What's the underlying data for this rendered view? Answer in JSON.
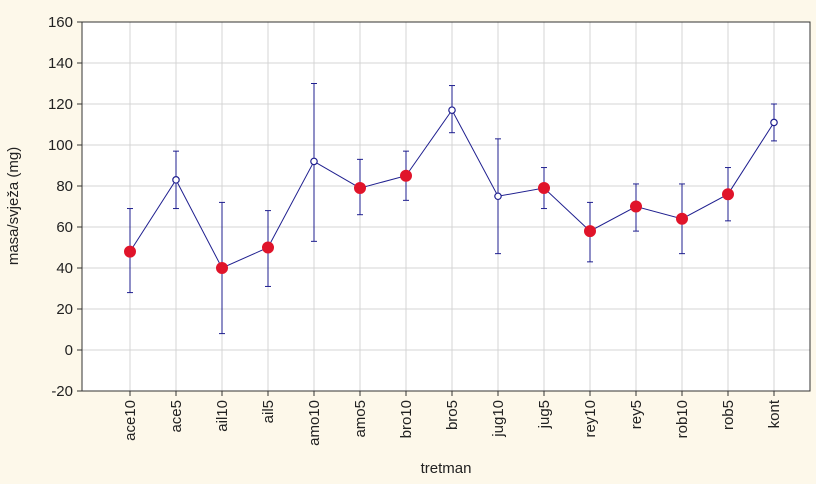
{
  "chart_data": {
    "type": "line",
    "xlabel": "tretman",
    "ylabel": "masa/svježa (mg)",
    "ylim": [
      -20,
      160
    ],
    "yticks": [
      -20,
      0,
      20,
      40,
      60,
      80,
      100,
      120,
      140,
      160
    ],
    "grid": true,
    "legend": "none",
    "colors": {
      "line": "#1f1f8f",
      "errorbar": "#1f1f8f",
      "marker_filled": "#e0142a",
      "marker_open": "#1f1f8f",
      "grid": "#d4d4d4",
      "plot_bg": "#ffffff",
      "page_bg": "#fdf8ea"
    },
    "categories": [
      "ace10",
      "ace5",
      "ail10",
      "ail5",
      "amo10",
      "amo5",
      "bro10",
      "bro5",
      "jug10",
      "jug5",
      "rey10",
      "rey5",
      "rob10",
      "rob5",
      "kont"
    ],
    "values": [
      48,
      83,
      40,
      50,
      92,
      79,
      85,
      117,
      75,
      79,
      58,
      70,
      64,
      76,
      111
    ],
    "err_low": [
      28,
      69,
      8,
      31,
      53,
      66,
      73,
      106,
      47,
      69,
      43,
      58,
      47,
      63,
      102
    ],
    "err_high": [
      69,
      97,
      72,
      68,
      130,
      93,
      97,
      129,
      103,
      89,
      72,
      81,
      81,
      89,
      120
    ],
    "marker": [
      "filled",
      "open",
      "filled",
      "filled",
      "open",
      "filled",
      "filled",
      "open",
      "open",
      "filled",
      "filled",
      "filled",
      "filled",
      "filled",
      "open"
    ]
  }
}
